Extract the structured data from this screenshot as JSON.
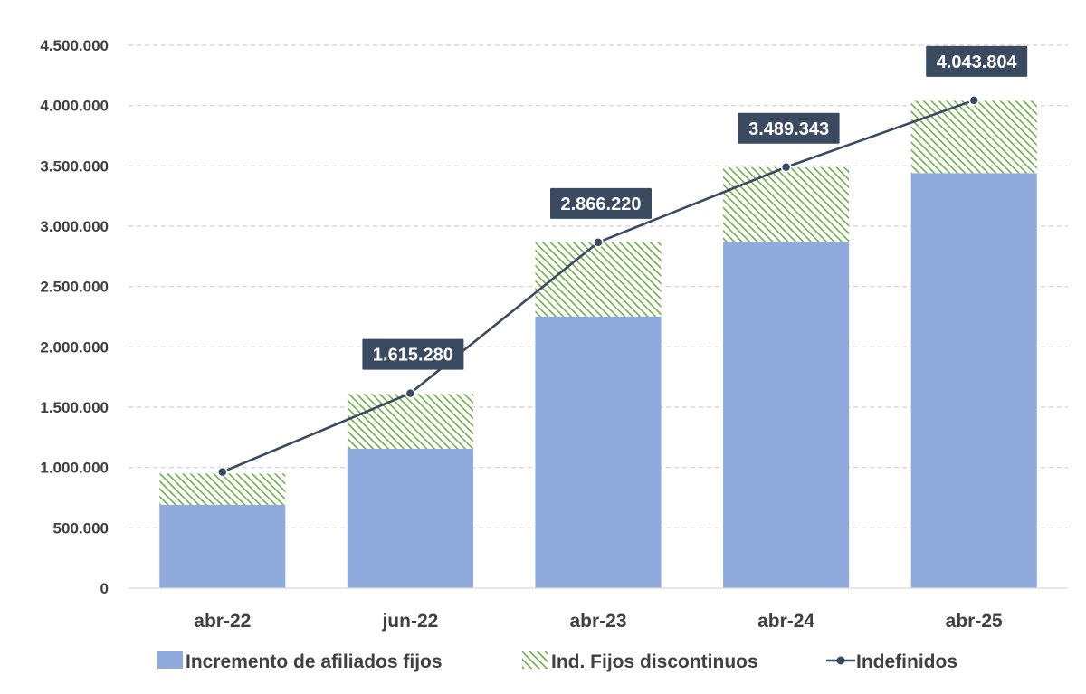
{
  "chart_data": {
    "type": "bar",
    "title": "",
    "xlabel": "",
    "ylabel": "",
    "categories": [
      "abr-22",
      "jun-22",
      "abr-23",
      "abr-24",
      "abr-25"
    ],
    "ylim": [
      0,
      4500000
    ],
    "yticks": [
      0,
      500000,
      1000000,
      1500000,
      2000000,
      2500000,
      3000000,
      3500000,
      4000000,
      4500000
    ],
    "ytick_labels": [
      "0",
      "500.000",
      "1.000.000",
      "1.500.000",
      "2.000.000",
      "2.500.000",
      "3.000.000",
      "3.500.000",
      "4.000.000",
      "4.500.000"
    ],
    "grid": true,
    "stacked": true,
    "legend_position": "bottom",
    "series": [
      {
        "name": "Incremento de afiliados fijos",
        "kind": "bar",
        "color": "#8faadc",
        "values": [
          690000,
          1155000,
          2250000,
          2870000,
          3440000
        ]
      },
      {
        "name": "Ind. Fijos discontinuos",
        "kind": "bar",
        "pattern": "diagonal-hatch",
        "color": "#70ad47",
        "values": [
          260000,
          455000,
          620000,
          620000,
          600000
        ]
      },
      {
        "name": "Indefinidos",
        "kind": "line",
        "color": "#3a4a60",
        "values": [
          963000,
          1615280,
          2866220,
          3489343,
          4043804
        ],
        "data_labels": [
          "",
          "1.615.280",
          "2.866.220",
          "3.489.343",
          "4.043.804"
        ]
      }
    ]
  }
}
